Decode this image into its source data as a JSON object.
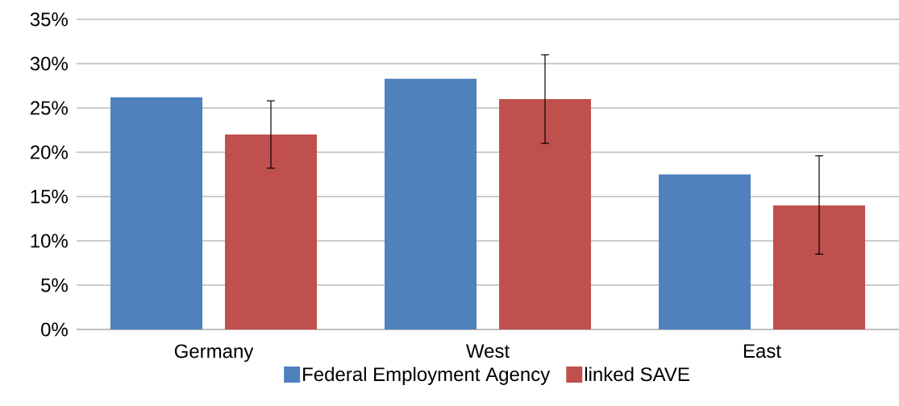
{
  "chart_data": {
    "type": "bar",
    "categories": [
      "Germany",
      "West",
      "East"
    ],
    "series": [
      {
        "name": "Federal Employment Agency",
        "color": "#4f81bd",
        "values": [
          26.2,
          28.3,
          17.5
        ]
      },
      {
        "name": "linked SAVE",
        "color": "#c0504d",
        "values": [
          22.0,
          26.0,
          14.0
        ],
        "errors": [
          [
            18.2,
            25.8
          ],
          [
            21.0,
            31.0
          ],
          [
            8.5,
            19.6
          ]
        ]
      }
    ],
    "ylim": [
      0,
      35
    ],
    "yticks": [
      {
        "value": 0,
        "label": "0%"
      },
      {
        "value": 5,
        "label": "5%"
      },
      {
        "value": 10,
        "label": "10%"
      },
      {
        "value": 15,
        "label": "15%"
      },
      {
        "value": 20,
        "label": "20%"
      },
      {
        "value": 25,
        "label": "25%"
      },
      {
        "value": 30,
        "label": "30%"
      },
      {
        "value": 35,
        "label": "35%"
      }
    ],
    "grid": "y",
    "legend": "bottom"
  }
}
